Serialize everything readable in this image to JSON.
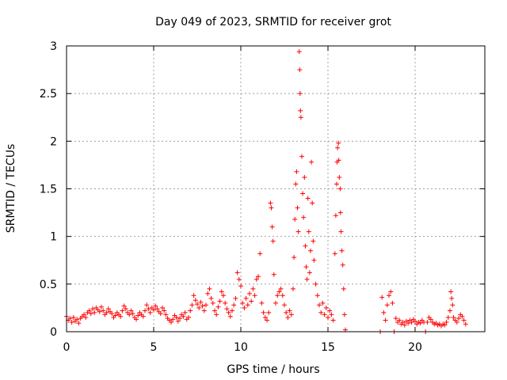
{
  "chart_data": {
    "type": "scatter",
    "title": "Day 049 of 2023, SRMTID for receiver grot",
    "xlabel": "GPS time / hours",
    "ylabel": "SRMTID / TECUs",
    "xlim": [
      0,
      24
    ],
    "ylim": [
      0,
      3
    ],
    "x_ticks": [
      0,
      5,
      10,
      15,
      20
    ],
    "x_tick_labels": [
      "0",
      "5",
      "10",
      "15",
      "20"
    ],
    "y_ticks": [
      0,
      0.5,
      1,
      1.5,
      2,
      2.5,
      3
    ],
    "y_tick_labels": [
      "0",
      "0.5",
      "1",
      "1.5",
      "2",
      "2.5",
      "3"
    ],
    "grid": true,
    "marker": "+",
    "color": "#ff0000",
    "series": [
      {
        "name": "SRMTID",
        "points": [
          [
            0.0,
            0.16
          ],
          [
            0.1,
            0.12
          ],
          [
            0.2,
            0.14
          ],
          [
            0.3,
            0.1
          ],
          [
            0.4,
            0.15
          ],
          [
            0.5,
            0.11
          ],
          [
            0.6,
            0.13
          ],
          [
            0.7,
            0.09
          ],
          [
            0.8,
            0.14
          ],
          [
            0.9,
            0.16
          ],
          [
            1.0,
            0.18
          ],
          [
            1.1,
            0.15
          ],
          [
            1.2,
            0.2
          ],
          [
            1.3,
            0.22
          ],
          [
            1.4,
            0.19
          ],
          [
            1.5,
            0.24
          ],
          [
            1.6,
            0.2
          ],
          [
            1.7,
            0.25
          ],
          [
            1.8,
            0.23
          ],
          [
            1.9,
            0.21
          ],
          [
            2.0,
            0.26
          ],
          [
            2.1,
            0.22
          ],
          [
            2.2,
            0.18
          ],
          [
            2.3,
            0.2
          ],
          [
            2.4,
            0.24
          ],
          [
            2.5,
            0.21
          ],
          [
            2.6,
            0.19
          ],
          [
            2.7,
            0.15
          ],
          [
            2.8,
            0.17
          ],
          [
            2.9,
            0.2
          ],
          [
            3.0,
            0.18
          ],
          [
            3.1,
            0.16
          ],
          [
            3.2,
            0.22
          ],
          [
            3.3,
            0.27
          ],
          [
            3.4,
            0.24
          ],
          [
            3.5,
            0.2
          ],
          [
            3.6,
            0.18
          ],
          [
            3.7,
            0.22
          ],
          [
            3.8,
            0.19
          ],
          [
            3.9,
            0.15
          ],
          [
            4.0,
            0.13
          ],
          [
            4.1,
            0.17
          ],
          [
            4.2,
            0.2
          ],
          [
            4.3,
            0.18
          ],
          [
            4.4,
            0.16
          ],
          [
            4.5,
            0.22
          ],
          [
            4.6,
            0.28
          ],
          [
            4.7,
            0.24
          ],
          [
            4.8,
            0.2
          ],
          [
            4.9,
            0.25
          ],
          [
            5.0,
            0.23
          ],
          [
            5.1,
            0.27
          ],
          [
            5.2,
            0.24
          ],
          [
            5.3,
            0.21
          ],
          [
            5.4,
            0.19
          ],
          [
            5.5,
            0.25
          ],
          [
            5.6,
            0.22
          ],
          [
            5.7,
            0.18
          ],
          [
            5.8,
            0.14
          ],
          [
            5.9,
            0.12
          ],
          [
            6.0,
            0.1
          ],
          [
            6.1,
            0.13
          ],
          [
            6.2,
            0.17
          ],
          [
            6.3,
            0.15
          ],
          [
            6.4,
            0.11
          ],
          [
            6.5,
            0.14
          ],
          [
            6.6,
            0.18
          ],
          [
            6.7,
            0.16
          ],
          [
            6.8,
            0.2
          ],
          [
            6.9,
            0.13
          ],
          [
            7.0,
            0.15
          ],
          [
            7.1,
            0.22
          ],
          [
            7.2,
            0.28
          ],
          [
            7.3,
            0.38
          ],
          [
            7.4,
            0.33
          ],
          [
            7.5,
            0.29
          ],
          [
            7.6,
            0.25
          ],
          [
            7.7,
            0.31
          ],
          [
            7.8,
            0.27
          ],
          [
            7.9,
            0.22
          ],
          [
            8.0,
            0.28
          ],
          [
            8.1,
            0.4
          ],
          [
            8.2,
            0.45
          ],
          [
            8.3,
            0.35
          ],
          [
            8.4,
            0.3
          ],
          [
            8.5,
            0.22
          ],
          [
            8.6,
            0.18
          ],
          [
            8.7,
            0.26
          ],
          [
            8.8,
            0.32
          ],
          [
            8.9,
            0.42
          ],
          [
            9.0,
            0.38
          ],
          [
            9.1,
            0.3
          ],
          [
            9.2,
            0.24
          ],
          [
            9.3,
            0.2
          ],
          [
            9.4,
            0.16
          ],
          [
            9.5,
            0.22
          ],
          [
            9.6,
            0.28
          ],
          [
            9.7,
            0.35
          ],
          [
            9.8,
            0.62
          ],
          [
            9.9,
            0.55
          ],
          [
            10.0,
            0.48
          ],
          [
            10.1,
            0.3
          ],
          [
            10.2,
            0.25
          ],
          [
            10.3,
            0.35
          ],
          [
            10.4,
            0.28
          ],
          [
            10.5,
            0.4
          ],
          [
            10.6,
            0.32
          ],
          [
            10.7,
            0.45
          ],
          [
            10.8,
            0.38
          ],
          [
            10.9,
            0.55
          ],
          [
            11.0,
            0.58
          ],
          [
            11.1,
            0.82
          ],
          [
            11.2,
            0.3
          ],
          [
            11.3,
            0.2
          ],
          [
            11.4,
            0.15
          ],
          [
            11.5,
            0.12
          ],
          [
            11.6,
            0.2
          ],
          [
            11.7,
            1.35
          ],
          [
            11.75,
            1.3
          ],
          [
            11.8,
            1.1
          ],
          [
            11.85,
            0.95
          ],
          [
            11.9,
            0.6
          ],
          [
            12.0,
            0.3
          ],
          [
            12.1,
            0.38
          ],
          [
            12.2,
            0.42
          ],
          [
            12.3,
            0.45
          ],
          [
            12.4,
            0.38
          ],
          [
            12.5,
            0.28
          ],
          [
            12.6,
            0.2
          ],
          [
            12.7,
            0.15
          ],
          [
            12.8,
            0.22
          ],
          [
            12.9,
            0.18
          ],
          [
            13.0,
            0.45
          ],
          [
            13.05,
            0.78
          ],
          [
            13.1,
            1.18
          ],
          [
            13.15,
            1.55
          ],
          [
            13.2,
            1.68
          ],
          [
            13.25,
            1.3
          ],
          [
            13.3,
            1.05
          ],
          [
            13.35,
            2.94
          ],
          [
            13.38,
            2.75
          ],
          [
            13.4,
            2.5
          ],
          [
            13.42,
            2.32
          ],
          [
            13.45,
            2.25
          ],
          [
            13.5,
            1.84
          ],
          [
            13.55,
            1.45
          ],
          [
            13.6,
            1.2
          ],
          [
            13.65,
            1.62
          ],
          [
            13.7,
            0.9
          ],
          [
            13.75,
            0.68
          ],
          [
            13.8,
            0.55
          ],
          [
            13.85,
            1.4
          ],
          [
            13.9,
            1.05
          ],
          [
            13.95,
            0.62
          ],
          [
            14.0,
            0.85
          ],
          [
            14.05,
            1.78
          ],
          [
            14.1,
            1.35
          ],
          [
            14.15,
            0.95
          ],
          [
            14.2,
            0.75
          ],
          [
            14.3,
            0.5
          ],
          [
            14.4,
            0.38
          ],
          [
            14.5,
            0.28
          ],
          [
            14.6,
            0.2
          ],
          [
            14.7,
            0.3
          ],
          [
            14.8,
            0.18
          ],
          [
            14.9,
            0.25
          ],
          [
            15.0,
            0.15
          ],
          [
            15.1,
            0.22
          ],
          [
            15.2,
            0.18
          ],
          [
            15.3,
            0.12
          ],
          [
            15.4,
            0.82
          ],
          [
            15.45,
            1.22
          ],
          [
            15.5,
            1.55
          ],
          [
            15.52,
            1.78
          ],
          [
            15.55,
            1.93
          ],
          [
            15.6,
            1.98
          ],
          [
            15.62,
            1.8
          ],
          [
            15.65,
            1.62
          ],
          [
            15.7,
            1.5
          ],
          [
            15.72,
            1.25
          ],
          [
            15.75,
            1.05
          ],
          [
            15.8,
            0.85
          ],
          [
            15.85,
            0.7
          ],
          [
            15.9,
            0.45
          ],
          [
            15.95,
            0.18
          ],
          [
            16.0,
            0.02
          ],
          [
            18.0,
            0.0
          ],
          [
            18.1,
            0.36
          ],
          [
            18.2,
            0.2
          ],
          [
            18.3,
            0.12
          ],
          [
            18.4,
            0.28
          ],
          [
            18.5,
            0.38
          ],
          [
            18.6,
            0.42
          ],
          [
            18.7,
            0.3
          ],
          [
            18.8,
            0.0
          ],
          [
            18.9,
            0.14
          ],
          [
            19.0,
            0.1
          ],
          [
            19.1,
            0.12
          ],
          [
            19.2,
            0.08
          ],
          [
            19.3,
            0.1
          ],
          [
            19.4,
            0.07
          ],
          [
            19.5,
            0.11
          ],
          [
            19.6,
            0.09
          ],
          [
            19.7,
            0.12
          ],
          [
            19.8,
            0.1
          ],
          [
            19.9,
            0.13
          ],
          [
            20.0,
            0.11
          ],
          [
            20.1,
            0.08
          ],
          [
            20.2,
            0.1
          ],
          [
            20.3,
            0.09
          ],
          [
            20.4,
            0.12
          ],
          [
            20.5,
            0.1
          ],
          [
            20.6,
            0.0
          ],
          [
            20.7,
            0.1
          ],
          [
            20.8,
            0.15
          ],
          [
            20.9,
            0.13
          ],
          [
            21.0,
            0.1
          ],
          [
            21.1,
            0.08
          ],
          [
            21.2,
            0.09
          ],
          [
            21.3,
            0.07
          ],
          [
            21.4,
            0.08
          ],
          [
            21.5,
            0.06
          ],
          [
            21.6,
            0.08
          ],
          [
            21.7,
            0.07
          ],
          [
            21.8,
            0.1
          ],
          [
            21.9,
            0.15
          ],
          [
            22.0,
            0.22
          ],
          [
            22.05,
            0.42
          ],
          [
            22.1,
            0.35
          ],
          [
            22.15,
            0.28
          ],
          [
            22.2,
            0.15
          ],
          [
            22.3,
            0.12
          ],
          [
            22.4,
            0.1
          ],
          [
            22.5,
            0.14
          ],
          [
            22.6,
            0.18
          ],
          [
            22.7,
            0.16
          ],
          [
            22.8,
            0.12
          ],
          [
            22.9,
            0.08
          ]
        ]
      }
    ]
  }
}
